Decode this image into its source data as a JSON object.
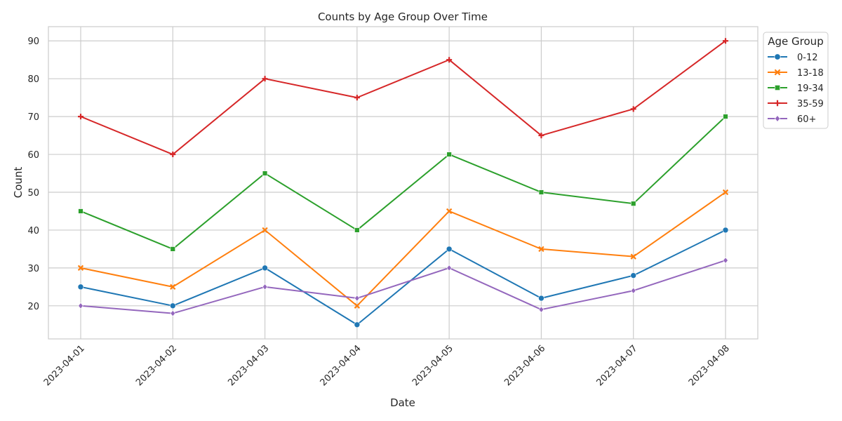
{
  "chart_data": {
    "type": "line",
    "title": "Counts by Age Group Over Time",
    "xlabel": "Date",
    "ylabel": "Count",
    "categories": [
      "2023-04-01",
      "2023-04-02",
      "2023-04-03",
      "2023-04-04",
      "2023-04-05",
      "2023-04-06",
      "2023-04-07",
      "2023-04-08"
    ],
    "ylim": [
      11.25,
      93.75
    ],
    "yticks": [
      20,
      30,
      40,
      50,
      60,
      70,
      80,
      90
    ],
    "grid": true,
    "legend": {
      "title": "Age Group",
      "placement": "outside-top-right"
    },
    "series": [
      {
        "name": "0-12",
        "color": "#1f77b4",
        "marker": "circle",
        "values": [
          25,
          20,
          30,
          15,
          35,
          22,
          28,
          40
        ]
      },
      {
        "name": "13-18",
        "color": "#ff7f0e",
        "marker": "x",
        "values": [
          30,
          25,
          40,
          20,
          45,
          35,
          33,
          50
        ]
      },
      {
        "name": "19-34",
        "color": "#2ca02c",
        "marker": "square",
        "values": [
          45,
          35,
          55,
          40,
          60,
          50,
          47,
          70
        ]
      },
      {
        "name": "35-59",
        "color": "#d62728",
        "marker": "plus",
        "values": [
          70,
          60,
          80,
          75,
          85,
          65,
          72,
          90
        ]
      },
      {
        "name": "60+",
        "color": "#9467bd",
        "marker": "diamond",
        "values": [
          20,
          18,
          25,
          22,
          30,
          19,
          24,
          32
        ]
      }
    ]
  }
}
